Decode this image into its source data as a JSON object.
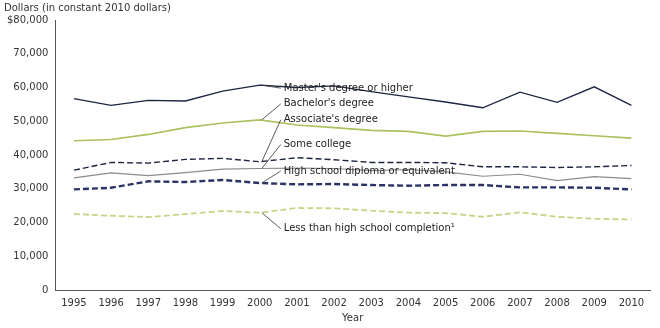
{
  "chart_data": {
    "type": "line",
    "title": "Dollars (in constant 2010 dollars)",
    "x_label": "Year",
    "categories": [
      1995,
      1996,
      1997,
      1998,
      1999,
      2000,
      2001,
      2002,
      2003,
      2004,
      2005,
      2006,
      2007,
      2008,
      2009,
      2010
    ],
    "series": [
      {
        "name": "Master's degree or higher",
        "color": "#1c2541",
        "line_style": "solid",
        "values": [
          56700,
          54700,
          56200,
          56000,
          58900,
          60700,
          60000,
          60500,
          58800,
          57200,
          55700,
          54000,
          58600,
          55600,
          60200,
          54700
        ]
      },
      {
        "name": "Bachelor's degree",
        "color": "#a9c25d",
        "line_style": "solid",
        "values": [
          44200,
          44600,
          46100,
          48100,
          49500,
          50400,
          48900,
          48100,
          47300,
          47000,
          45600,
          47000,
          47100,
          46400,
          45700,
          45000
        ]
      },
      {
        "name": "Associate's degree",
        "color": "#1c2541",
        "line_style": "dashed",
        "values": [
          35500,
          37800,
          37600,
          38700,
          39000,
          38000,
          39200,
          38600,
          37800,
          37800,
          37700,
          36500,
          36500,
          36300,
          36500,
          36900
        ]
      },
      {
        "name": "Some college",
        "color": "#8c8c8c",
        "line_style": "solid",
        "values": [
          33200,
          34700,
          33900,
          34800,
          35800,
          36000,
          36100,
          36000,
          35400,
          35700,
          35000,
          33700,
          34300,
          32400,
          33600,
          33000
        ]
      },
      {
        "name": "High school diploma or equivalent",
        "color": "#2a3366",
        "line_style": "dashed",
        "values": [
          29800,
          30300,
          32200,
          32000,
          32600,
          31700,
          31300,
          31400,
          31100,
          30900,
          31100,
          31100,
          30400,
          30400,
          30300,
          29800
        ]
      },
      {
        "name": "Less than high school completion¹",
        "color": "#c5d585",
        "line_style": "dashed",
        "values": [
          22500,
          22000,
          21600,
          22500,
          23400,
          22900,
          24300,
          24200,
          23500,
          22900,
          22800,
          21700,
          23000,
          21700,
          21100,
          20900
        ]
      }
    ],
    "ylim": [
      0,
      80000
    ],
    "yticks": [
      0,
      {
        "value": 10000,
        "label": "10,000"
      },
      {
        "value": 20000,
        "label": "20,000"
      },
      {
        "value": 30000,
        "label": "30,000"
      },
      {
        "value": 40000,
        "label": "40,000"
      },
      {
        "value": 50000,
        "label": "50,000"
      },
      {
        "value": 60000,
        "label": "60,000"
      },
      {
        "value": 70000,
        "label": "70,000"
      },
      {
        "value": 80000,
        "label": "$80,000"
      }
    ],
    "grid": false
  }
}
